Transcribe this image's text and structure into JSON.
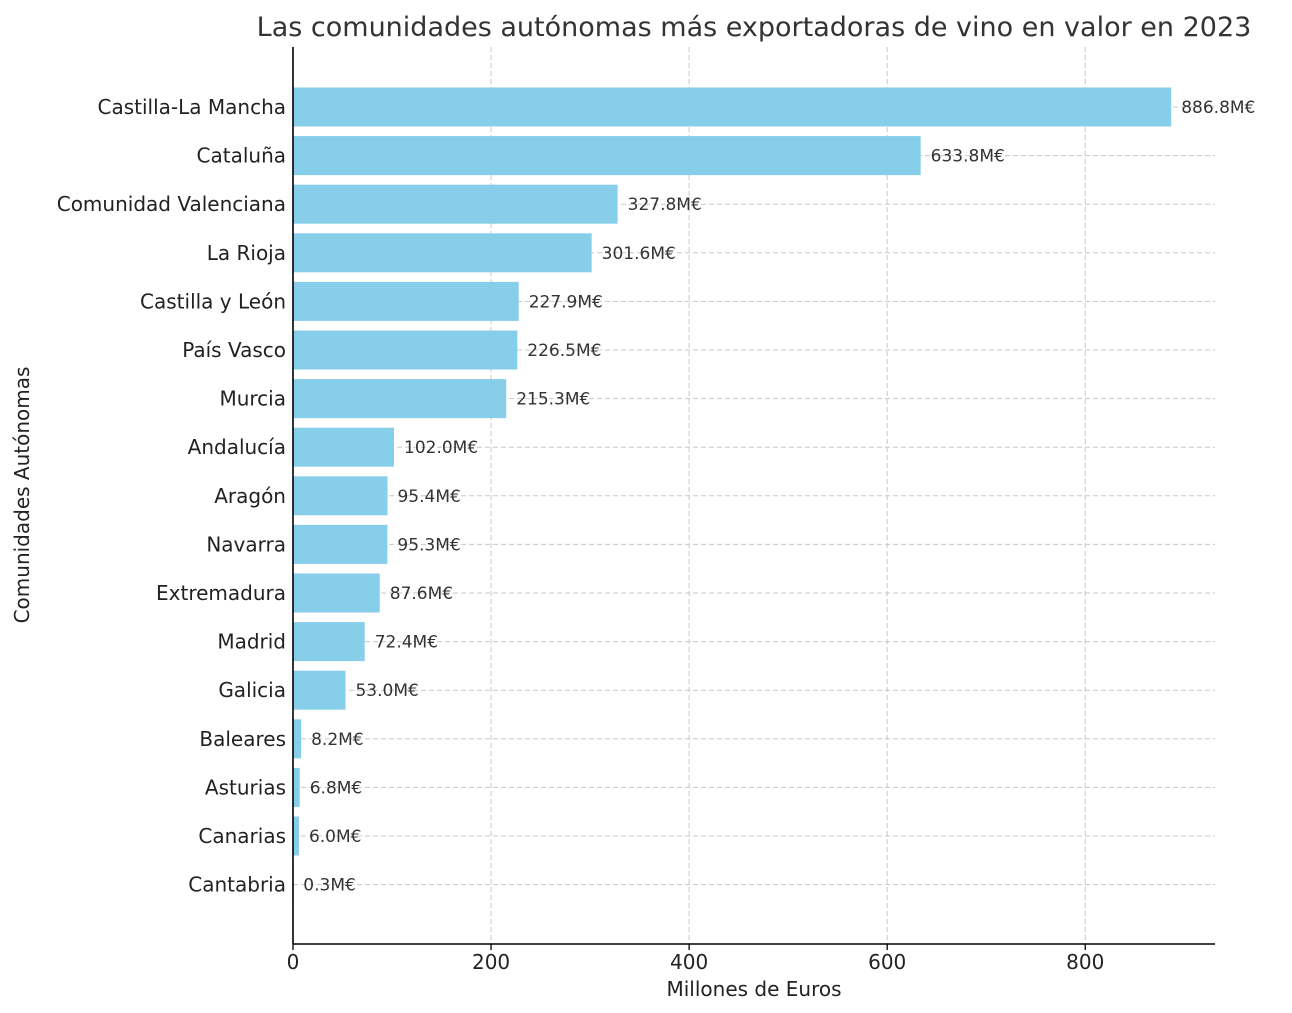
{
  "chart_data": {
    "type": "bar",
    "orientation": "horizontal",
    "title": "Las comunidades autónomas más exportadoras de vino en valor en 2023",
    "xlabel": "Millones de Euros",
    "ylabel": "Comunidades Autónomas",
    "xlim": [
      0,
      931
    ],
    "xticks": [
      0,
      200,
      400,
      600,
      800
    ],
    "grid": true,
    "bar_color": "#87CEEB",
    "categories": [
      "Castilla-La Mancha",
      "Cataluña",
      "Comunidad Valenciana",
      "La Rioja",
      "Castilla y León",
      "País Vasco",
      "Murcia",
      "Andalucía",
      "Aragón",
      "Navarra",
      "Extremadura",
      "Madrid",
      "Galicia",
      "Baleares",
      "Asturias",
      "Canarias",
      "Cantabria"
    ],
    "values": [
      886.8,
      633.8,
      327.8,
      301.6,
      227.9,
      226.5,
      215.3,
      102.0,
      95.4,
      95.3,
      87.6,
      72.4,
      53.0,
      8.2,
      6.8,
      6.0,
      0.3
    ],
    "value_labels": [
      "886.8M€",
      "633.8M€",
      "327.8M€",
      "301.6M€",
      "227.9M€",
      "226.5M€",
      "215.3M€",
      "102.0M€",
      "95.4M€",
      "95.3M€",
      "87.6M€",
      "72.4M€",
      "53.0M€",
      "8.2M€",
      "6.8M€",
      "6.0M€",
      "0.3M€"
    ]
  }
}
